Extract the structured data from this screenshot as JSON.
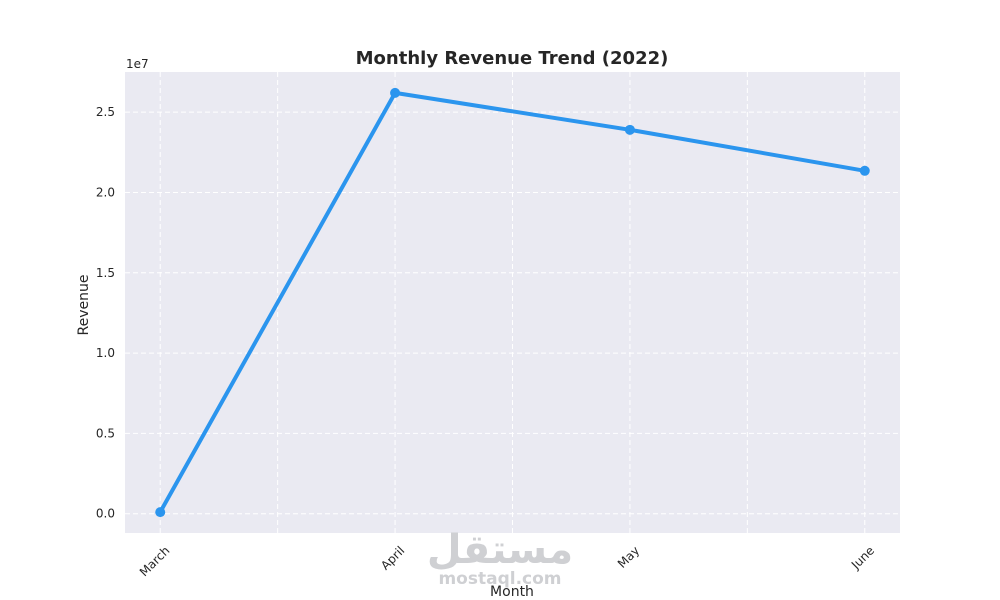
{
  "chart_data": {
    "type": "line",
    "title": "Monthly Revenue Trend (2022)",
    "xlabel": "Month",
    "ylabel": "Revenue",
    "y_offset_label": "1e7",
    "categories": [
      "March",
      "April",
      "May",
      "June"
    ],
    "x_positions": [
      0,
      2,
      4,
      6
    ],
    "series": [
      {
        "values": [
          100000,
          26200000,
          23900000,
          21350000
        ]
      }
    ],
    "y_ticks": [
      0,
      5000000,
      10000000,
      15000000,
      20000000,
      25000000
    ],
    "y_tick_labels": [
      "0.0",
      "0.5",
      "1.0",
      "1.5",
      "2.0",
      "2.5"
    ],
    "xlim": [
      -0.3,
      6.3
    ],
    "ylim": [
      -1200000,
      27500000
    ],
    "grid": true,
    "line_color": "#2b95ee",
    "background_color": "#eaeaf2"
  },
  "watermark": {
    "arabic_text": "مستقل",
    "latin_text": "mostaql.com"
  }
}
